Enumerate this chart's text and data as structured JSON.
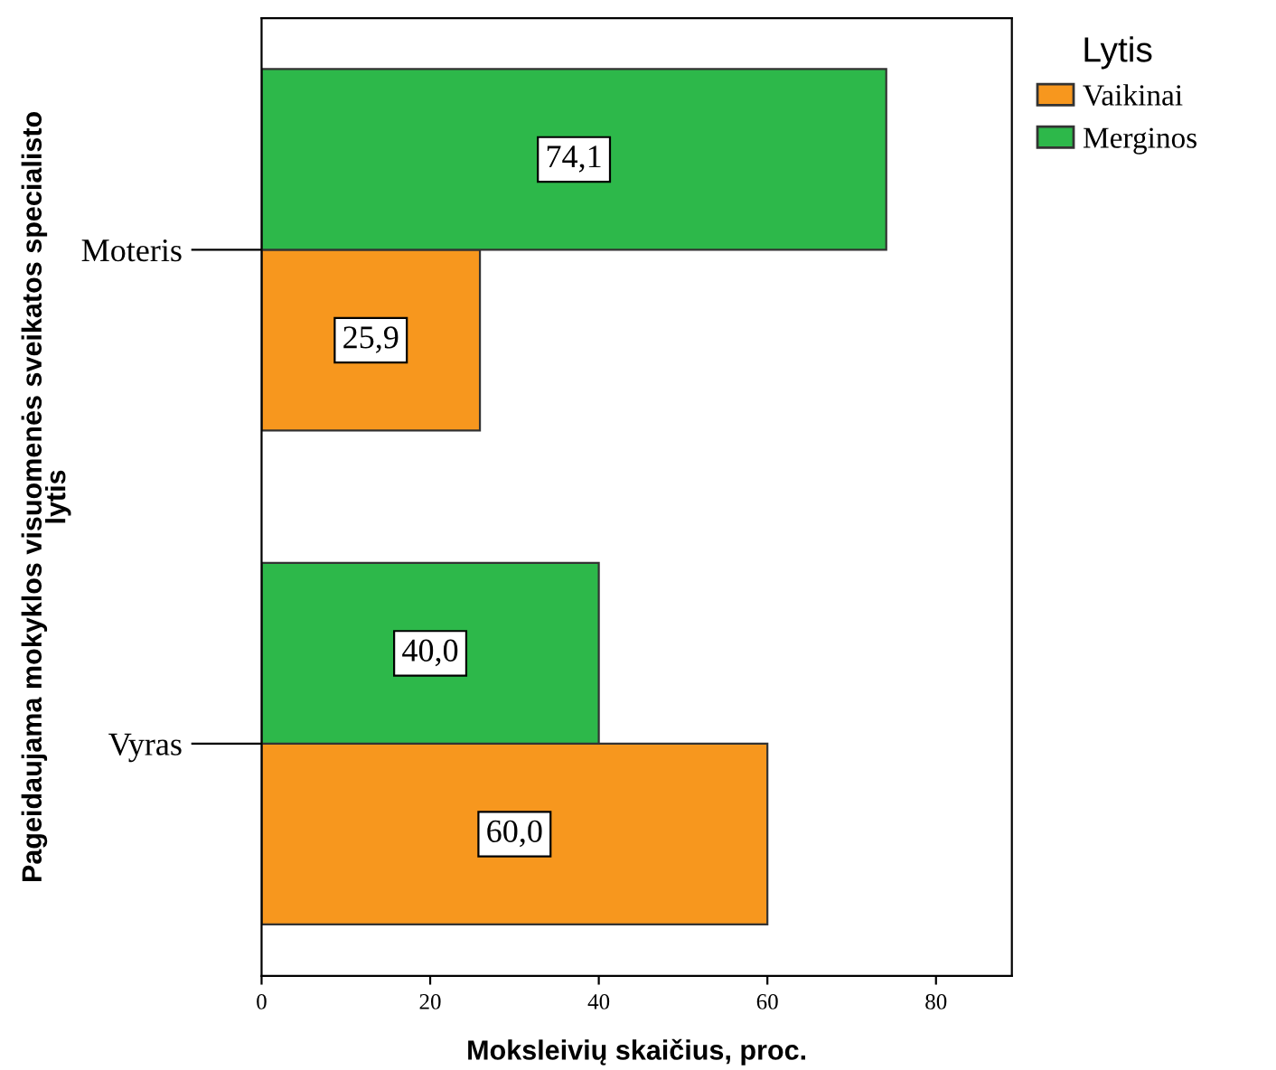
{
  "chart_data": {
    "type": "bar",
    "orientation": "horizontal",
    "xlabel": "Moksleivių skaičius, proc.",
    "ylabel": "Pageidaujama mokyklos visuomenės sveikatos specialisto\nlytis",
    "legend_title": "Lytis",
    "legend": "top right",
    "grid": false,
    "categories": [
      "Moteris",
      "Vyras"
    ],
    "series": [
      {
        "name": "Vaikinai",
        "color": "#f7971e",
        "values": [
          25.9,
          60.0
        ],
        "value_labels": [
          "25,9",
          "60,0"
        ]
      },
      {
        "name": "Merginos",
        "color": "#2db84a",
        "values": [
          74.1,
          40.0
        ],
        "value_labels": [
          "74,1",
          "40,0"
        ]
      }
    ],
    "xlim": [
      0,
      89
    ],
    "xticks": [
      0,
      20,
      40,
      60,
      80
    ]
  }
}
